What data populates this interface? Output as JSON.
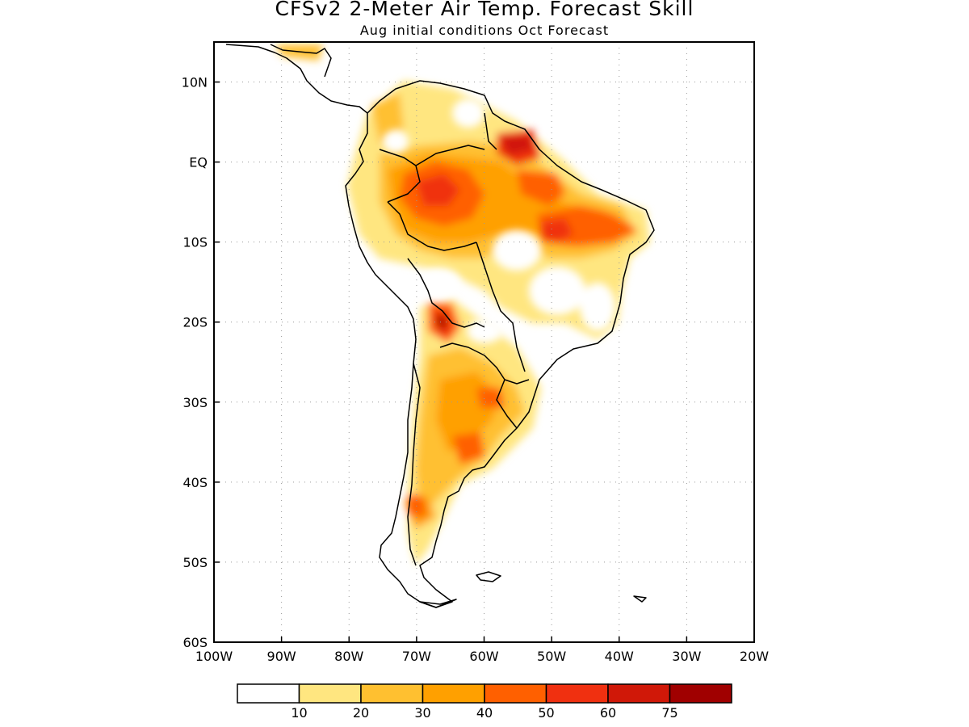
{
  "title": "CFSv2 2-Meter Air Temp. Forecast Skill",
  "subtitle": "Aug initial conditions  Oct Forecast",
  "map": {
    "lon_range": [
      -100,
      -20
    ],
    "lat_range": [
      -60,
      15
    ],
    "x_ticks": [
      "100W",
      "90W",
      "80W",
      "70W",
      "60W",
      "50W",
      "40W",
      "30W",
      "20W"
    ],
    "y_ticks": [
      "10N",
      "EQ",
      "10S",
      "20S",
      "30S",
      "40S",
      "50S",
      "60S"
    ],
    "grid": true
  },
  "colorbar": {
    "labels": [
      "10",
      "20",
      "30",
      "40",
      "50",
      "60",
      "75"
    ],
    "colors": [
      "#ffffff",
      "#ffe680",
      "#ffc030",
      "#ffa000",
      "#ff6000",
      "#f03010",
      "#d01808",
      "#a00000"
    ]
  },
  "colors": {
    "land_outline": "#000000",
    "grid": "#9a9a9a"
  }
}
